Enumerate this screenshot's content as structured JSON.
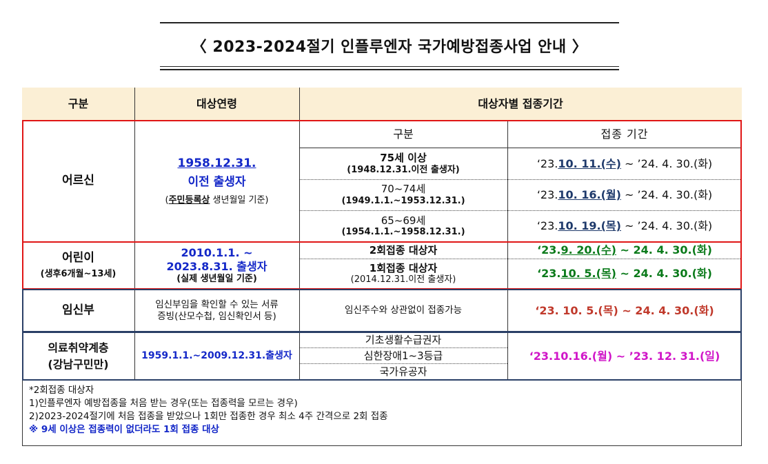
{
  "title": "〈 2023-2024절기 인플루엔자 국가예방접종사업 안내 〉",
  "header": {
    "col1": "구분",
    "col2": "대상연령",
    "col3": "대상자별 접종기간"
  },
  "elderly": {
    "label": "어르신",
    "age_line1": "1958.12.31.",
    "age_line2": "이전 출생자",
    "age_note_a": "(",
    "age_note_u": "주민등록상",
    "age_note_b": " 생년월일 기준)",
    "sub_header_group": "구분",
    "sub_header_period": "접종 기간",
    "rows": [
      {
        "group": "75세 이상",
        "range": "(1948.12.31.이전 출생자)",
        "start_pre": "‘23. ",
        "start": "10. 11.(수)",
        "end": " ~ ’24. 4. 30.(화)"
      },
      {
        "group": "70~74세",
        "range": "(1949.1.1.~1953.12.31.)",
        "start_pre": "‘23. ",
        "start": "10. 16.(월)",
        "end": " ~ ’24. 4. 30.(화)"
      },
      {
        "group": "65~69세",
        "range": "(1954.1.1.~1958.12.31.)",
        "start_pre": "‘23. ",
        "start": "10. 19.(목)",
        "end": " ~ ’24. 4. 30.(화)"
      }
    ]
  },
  "children": {
    "label": "어린이",
    "sub_label": "(생후6개월~13세)",
    "age_line1": "2010.1.1. ~",
    "age_line2": "2023.8.31. 출생자",
    "age_note": "(실제 생년월일 기준)",
    "rows": [
      {
        "group": "2회접종 대상자",
        "start_pre": "‘23. ",
        "start": "9. 20.(수)",
        "end": " ~ 24. 4. 30.(화)"
      },
      {
        "group": "1회접종 대상자",
        "range": "(2014.12.31.이전 출생자)",
        "start_pre": "‘23. ",
        "start": "10. 5.(목)",
        "end": " ~ 24. 4. 30.(화)"
      }
    ]
  },
  "pregnant": {
    "label": "임신부",
    "age_line1": "임신부임을 확인할 수 있는 서류",
    "age_line2": "증빙(산모수첩, 임신확인서 등)",
    "group": "임신주수와 상관없이 접종가능",
    "period": "‘23. 10. 5.(목) ~ 24. 4. 30.(화)"
  },
  "vulnerable": {
    "label_line1": "의료취약계층",
    "label_line2": "(강남구민만)",
    "age": "1959.1.1.~2009.12.31.출생자",
    "groups": [
      "기초생활수급권자",
      "심한장애1~3등급",
      "국가유공자"
    ],
    "period": "‘23.10.16.(월) ~ ’23. 12. 31.(일)"
  },
  "notes": {
    "line1": "*2회접종 대상자",
    "line2": "1)인플루엔자 예방접종을 처음 받는 경우(또는 접종력을 모르는 경우)",
    "line3": "2)2023-2024절기에 처음 접종을 받았으나 1회만 접종한 경우 최소 4주 간격으로 2회 접종",
    "line4": "※ 9세 이상은 접종력이 없더라도 1회 접종 대상"
  },
  "colors": {
    "header_bg": "#fbefd5",
    "red_box": "#e01515",
    "navy_box": "#2a3f66",
    "blue_text": "#1428c8",
    "green_text": "#0a7a1a",
    "red_text": "#c0392b",
    "magenta_text": "#d016c8"
  }
}
